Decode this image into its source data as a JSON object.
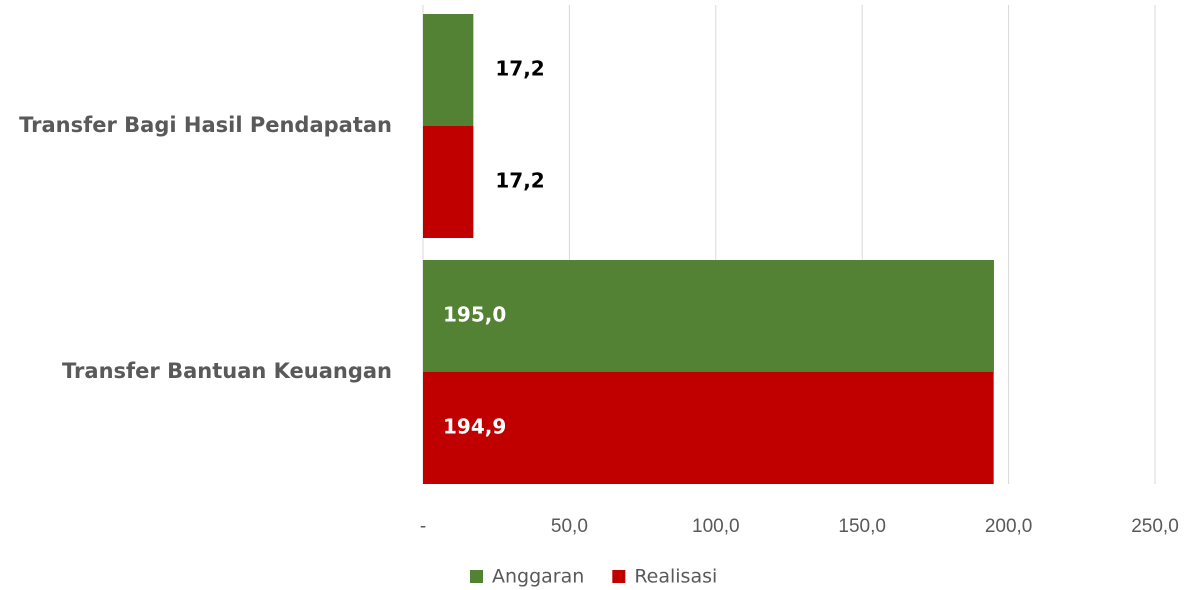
{
  "chart_data": {
    "type": "bar",
    "orientation": "horizontal",
    "categories": [
      "Transfer Bagi Hasil Pendapatan",
      "Transfer Bantuan Keuangan"
    ],
    "series": [
      {
        "name": "Anggaran",
        "color": "#548235",
        "values": [
          17.2,
          195.0
        ],
        "value_labels": [
          "17,2",
          "195,0"
        ]
      },
      {
        "name": "Realisasi",
        "color": "#c00000",
        "values": [
          17.2,
          194.9
        ],
        "value_labels": [
          "17,2",
          "194,9"
        ]
      }
    ],
    "xlim": [
      0,
      250
    ],
    "xticks": [
      {
        "value": 0,
        "label": "-"
      },
      {
        "value": 50,
        "label": "50,0"
      },
      {
        "value": 100,
        "label": "100,0"
      },
      {
        "value": 150,
        "label": "150,0"
      },
      {
        "value": 200,
        "label": "200,0"
      },
      {
        "value": 250,
        "label": "250,0"
      }
    ],
    "grid": true,
    "legend": "bottom"
  }
}
